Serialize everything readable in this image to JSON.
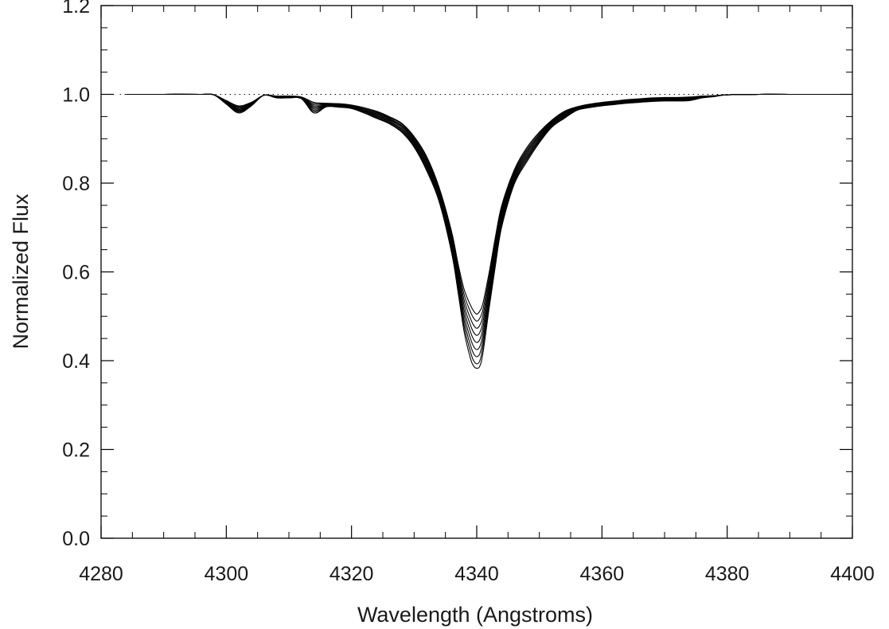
{
  "chart_data": {
    "type": "line",
    "title": "",
    "xlabel": "Wavelength (Angstroms)",
    "ylabel": "Normalized Flux",
    "xlim": [
      4280,
      4400
    ],
    "ylim": [
      0.0,
      1.2
    ],
    "x_ticks": [
      4280,
      4300,
      4320,
      4340,
      4360,
      4380,
      4400
    ],
    "x_tick_labels": [
      "4280",
      "4300",
      "4320",
      "4340",
      "4360",
      "4380",
      "4400"
    ],
    "y_ticks": [
      0.0,
      0.2,
      0.4,
      0.6,
      0.8,
      1.0,
      1.2
    ],
    "y_tick_labels": [
      "0.0",
      "0.2",
      "0.4",
      "0.6",
      "0.8",
      "1.0",
      "1.2"
    ],
    "x_minor_step": 5,
    "y_minor_step": 0.05,
    "grid": false,
    "legend": "none",
    "line_color": "#000000",
    "continuum": {
      "y": 1.0,
      "style": "dotted",
      "x_range": [
        4283,
        4398
      ]
    },
    "x": [
      4284,
      4290,
      4296,
      4298,
      4300,
      4302,
      4304,
      4306,
      4308,
      4310,
      4312,
      4314,
      4316,
      4318,
      4320,
      4322,
      4324,
      4326,
      4328,
      4330,
      4332,
      4334,
      4336,
      4337,
      4338,
      4339,
      4339.5,
      4340,
      4340.5,
      4341,
      4342,
      4343,
      4344,
      4346,
      4348,
      4350,
      4352,
      4354,
      4356,
      4358,
      4360,
      4362,
      4364,
      4366,
      4368,
      4370,
      4372,
      4374,
      4376,
      4378,
      4380,
      4385,
      4390,
      4398
    ],
    "series": [
      {
        "values": [
          1.0,
          1.0,
          1.0,
          0.999,
          0.986,
          0.974,
          0.982,
          0.998,
          0.996,
          0.996,
          0.994,
          0.982,
          0.98,
          0.979,
          0.976,
          0.97,
          0.962,
          0.95,
          0.935,
          0.905,
          0.86,
          0.79,
          0.69,
          0.62,
          0.56,
          0.525,
          0.512,
          0.505,
          0.512,
          0.53,
          0.6,
          0.68,
          0.75,
          0.83,
          0.88,
          0.915,
          0.942,
          0.962,
          0.972,
          0.978,
          0.982,
          0.985,
          0.988,
          0.99,
          0.992,
          0.993,
          0.993,
          0.994,
          0.996,
          0.997,
          0.999,
          1.0,
          1.0,
          1.0
        ]
      },
      {
        "values": [
          1.0,
          1.0,
          1.0,
          0.999,
          0.985,
          0.972,
          0.981,
          0.998,
          0.996,
          0.996,
          0.994,
          0.979,
          0.979,
          0.978,
          0.975,
          0.968,
          0.96,
          0.948,
          0.933,
          0.902,
          0.856,
          0.786,
          0.684,
          0.612,
          0.548,
          0.51,
          0.496,
          0.489,
          0.496,
          0.516,
          0.59,
          0.672,
          0.744,
          0.826,
          0.876,
          0.912,
          0.94,
          0.96,
          0.971,
          0.977,
          0.981,
          0.984,
          0.987,
          0.989,
          0.991,
          0.992,
          0.992,
          0.993,
          0.996,
          0.997,
          0.999,
          1.0,
          1.0,
          1.0
        ]
      },
      {
        "values": [
          1.0,
          1.0,
          1.0,
          0.999,
          0.984,
          0.97,
          0.98,
          0.998,
          0.995,
          0.995,
          0.993,
          0.976,
          0.978,
          0.977,
          0.974,
          0.967,
          0.958,
          0.946,
          0.93,
          0.899,
          0.852,
          0.782,
          0.678,
          0.604,
          0.536,
          0.495,
          0.48,
          0.473,
          0.48,
          0.502,
          0.58,
          0.664,
          0.738,
          0.822,
          0.872,
          0.909,
          0.938,
          0.958,
          0.97,
          0.976,
          0.98,
          0.983,
          0.986,
          0.988,
          0.99,
          0.991,
          0.991,
          0.992,
          0.995,
          0.997,
          0.999,
          1.0,
          1.0,
          1.0
        ]
      },
      {
        "values": [
          1.0,
          1.0,
          1.0,
          0.999,
          0.983,
          0.968,
          0.979,
          0.998,
          0.995,
          0.995,
          0.993,
          0.973,
          0.977,
          0.976,
          0.973,
          0.965,
          0.956,
          0.944,
          0.928,
          0.896,
          0.848,
          0.778,
          0.672,
          0.596,
          0.524,
          0.48,
          0.464,
          0.457,
          0.464,
          0.488,
          0.57,
          0.656,
          0.732,
          0.818,
          0.868,
          0.906,
          0.936,
          0.956,
          0.969,
          0.975,
          0.979,
          0.982,
          0.985,
          0.987,
          0.989,
          0.99,
          0.99,
          0.991,
          0.995,
          0.997,
          0.999,
          1.0,
          1.0,
          1.0
        ]
      },
      {
        "values": [
          1.0,
          1.0,
          1.0,
          0.999,
          0.982,
          0.966,
          0.978,
          0.998,
          0.994,
          0.994,
          0.992,
          0.97,
          0.976,
          0.975,
          0.972,
          0.964,
          0.954,
          0.942,
          0.925,
          0.893,
          0.844,
          0.774,
          0.666,
          0.588,
          0.512,
          0.465,
          0.448,
          0.441,
          0.448,
          0.474,
          0.56,
          0.648,
          0.726,
          0.814,
          0.864,
          0.903,
          0.934,
          0.954,
          0.968,
          0.974,
          0.978,
          0.981,
          0.984,
          0.986,
          0.988,
          0.989,
          0.989,
          0.99,
          0.994,
          0.996,
          0.999,
          1.0,
          1.0,
          1.0
        ]
      },
      {
        "values": [
          1.0,
          1.0,
          1.0,
          0.999,
          0.981,
          0.964,
          0.977,
          0.998,
          0.994,
          0.994,
          0.992,
          0.967,
          0.975,
          0.974,
          0.971,
          0.962,
          0.952,
          0.94,
          0.922,
          0.89,
          0.84,
          0.77,
          0.66,
          0.58,
          0.5,
          0.45,
          0.432,
          0.425,
          0.432,
          0.46,
          0.55,
          0.64,
          0.72,
          0.81,
          0.86,
          0.9,
          0.932,
          0.952,
          0.967,
          0.973,
          0.977,
          0.98,
          0.983,
          0.985,
          0.987,
          0.988,
          0.988,
          0.989,
          0.994,
          0.996,
          0.999,
          1.0,
          1.0,
          1.0
        ]
      },
      {
        "values": [
          1.0,
          1.0,
          1.0,
          0.999,
          0.98,
          0.962,
          0.976,
          0.998,
          0.993,
          0.993,
          0.991,
          0.964,
          0.974,
          0.973,
          0.97,
          0.961,
          0.95,
          0.938,
          0.92,
          0.887,
          0.836,
          0.766,
          0.654,
          0.572,
          0.488,
          0.435,
          0.416,
          0.409,
          0.416,
          0.446,
          0.54,
          0.632,
          0.714,
          0.806,
          0.856,
          0.897,
          0.93,
          0.95,
          0.966,
          0.972,
          0.976,
          0.979,
          0.982,
          0.984,
          0.986,
          0.987,
          0.987,
          0.988,
          0.993,
          0.996,
          0.999,
          1.0,
          1.0,
          1.0
        ]
      },
      {
        "values": [
          1.0,
          1.0,
          1.0,
          0.999,
          0.979,
          0.96,
          0.975,
          0.998,
          0.993,
          0.993,
          0.991,
          0.961,
          0.973,
          0.972,
          0.969,
          0.959,
          0.948,
          0.936,
          0.917,
          0.884,
          0.832,
          0.762,
          0.648,
          0.564,
          0.476,
          0.42,
          0.4,
          0.393,
          0.4,
          0.432,
          0.53,
          0.624,
          0.708,
          0.802,
          0.852,
          0.894,
          0.928,
          0.948,
          0.965,
          0.971,
          0.975,
          0.978,
          0.981,
          0.983,
          0.985,
          0.986,
          0.986,
          0.987,
          0.993,
          0.996,
          0.999,
          1.0,
          1.0,
          1.0
        ]
      },
      {
        "values": [
          1.0,
          1.0,
          1.0,
          0.999,
          0.978,
          0.958,
          0.974,
          0.998,
          0.992,
          0.992,
          0.99,
          0.958,
          0.972,
          0.971,
          0.968,
          0.958,
          0.946,
          0.934,
          0.915,
          0.881,
          0.828,
          0.758,
          0.642,
          0.556,
          0.464,
          0.405,
          0.388,
          0.383,
          0.388,
          0.418,
          0.52,
          0.616,
          0.702,
          0.798,
          0.848,
          0.891,
          0.926,
          0.946,
          0.964,
          0.97,
          0.974,
          0.977,
          0.98,
          0.982,
          0.984,
          0.985,
          0.985,
          0.986,
          0.992,
          0.995,
          0.999,
          1.0,
          1.0,
          1.0
        ]
      }
    ]
  }
}
